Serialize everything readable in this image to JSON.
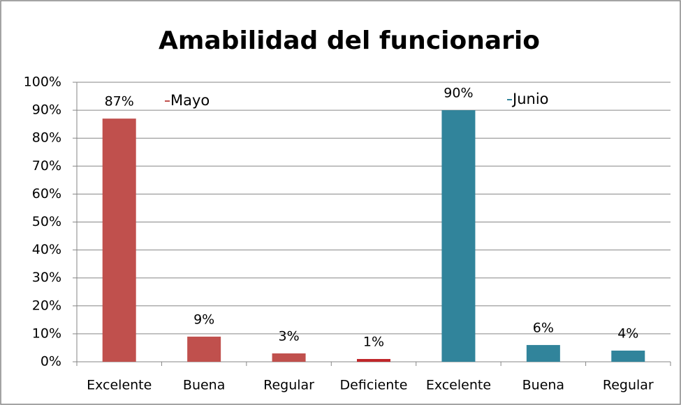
{
  "chart_data": {
    "type": "bar",
    "title": "Amabilidad del funcionario",
    "categories": [
      "Excelente",
      "Buena",
      "Regular",
      "Deficiente",
      "Excelente",
      "Buena",
      "Regular"
    ],
    "values": [
      87,
      9,
      3,
      1,
      90,
      6,
      4
    ],
    "value_labels": [
      "87%",
      "9%",
      "3%",
      "1%",
      "90%",
      "6%",
      "4%"
    ],
    "colors": [
      "#c0504d",
      "#c0504d",
      "#c0504d",
      "#c0262a",
      "#31849b",
      "#31849b",
      "#31849b"
    ],
    "annotations": [
      {
        "text": "Mayo",
        "color": "#c0504d"
      },
      {
        "text": "Junio",
        "color": "#31849b"
      }
    ],
    "ylim": [
      0,
      100
    ],
    "yticks": [
      {
        "value": 0,
        "label": "0%"
      },
      {
        "value": 10,
        "label": "10%"
      },
      {
        "value": 20,
        "label": "20%"
      },
      {
        "value": 30,
        "label": "30%"
      },
      {
        "value": 40,
        "label": "40%"
      },
      {
        "value": 50,
        "label": "50%"
      },
      {
        "value": 60,
        "label": "60%"
      },
      {
        "value": 70,
        "label": "70%"
      },
      {
        "value": 80,
        "label": "80%"
      },
      {
        "value": 90,
        "label": "90%"
      },
      {
        "value": 100,
        "label": "100%"
      }
    ],
    "grid": true
  }
}
